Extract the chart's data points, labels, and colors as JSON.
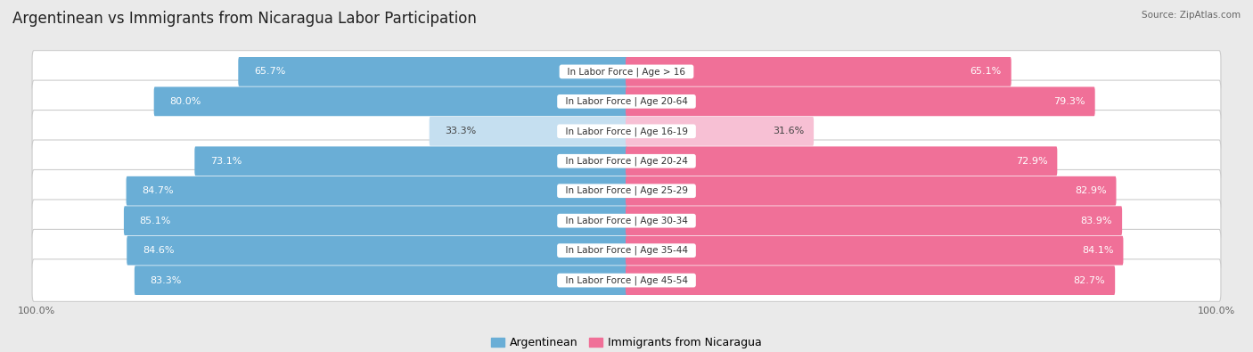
{
  "title": "Argentinean vs Immigrants from Nicaragua Labor Participation",
  "source": "Source: ZipAtlas.com",
  "categories": [
    "In Labor Force | Age > 16",
    "In Labor Force | Age 20-64",
    "In Labor Force | Age 16-19",
    "In Labor Force | Age 20-24",
    "In Labor Force | Age 25-29",
    "In Labor Force | Age 30-34",
    "In Labor Force | Age 35-44",
    "In Labor Force | Age 45-54"
  ],
  "argentinean": [
    65.7,
    80.0,
    33.3,
    73.1,
    84.7,
    85.1,
    84.6,
    83.3
  ],
  "nicaragua": [
    65.1,
    79.3,
    31.6,
    72.9,
    82.9,
    83.9,
    84.1,
    82.7
  ],
  "arg_color": "#6aaed6",
  "nic_color": "#f07098",
  "arg_color_light": "#c5dff0",
  "nic_color_light": "#f7c0d4",
  "bg_color": "#eaeaea",
  "title_fontsize": 12,
  "label_fontsize": 8,
  "bar_height": 0.68,
  "legend_labels": [
    "Argentinean",
    "Immigrants from Nicaragua"
  ],
  "max_val": 100.0,
  "x_tick_bottom": -0.65
}
